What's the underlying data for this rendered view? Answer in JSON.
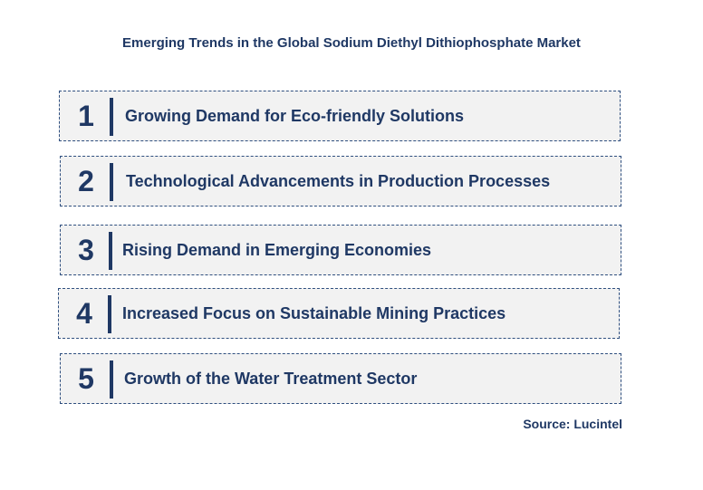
{
  "title": "Emerging Trends in the Global Sodium Diethyl Dithiophosphate Market",
  "trends": [
    {
      "number": "1",
      "label": "Growing Demand for Eco-friendly Solutions"
    },
    {
      "number": "2",
      "label": "Technological Advancements in Production Processes"
    },
    {
      "number": "3",
      "label": "Rising Demand in Emerging Economies"
    },
    {
      "number": "4",
      "label": "Increased Focus on Sustainable Mining Practices"
    },
    {
      "number": "5",
      "label": "Growth of the Water Treatment Sector"
    }
  ],
  "source": "Source: Lucintel",
  "colors": {
    "primary": "#1f3864",
    "box_background": "#f2f2f2"
  }
}
